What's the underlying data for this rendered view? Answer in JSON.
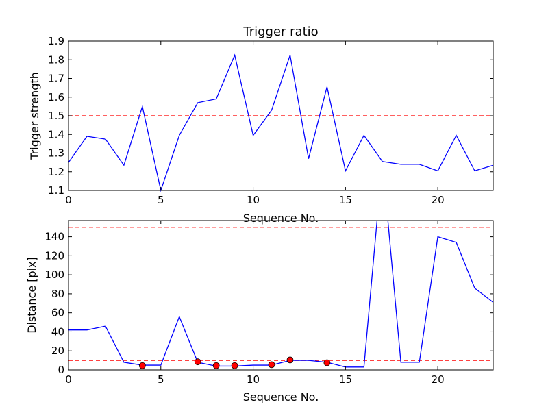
{
  "chart_data": [
    {
      "type": "line",
      "title": "Trigger ratio",
      "xlabel": "Sequence No.",
      "ylabel": "Trigger strength",
      "xlim": [
        0,
        23
      ],
      "ylim": [
        1.1,
        1.9
      ],
      "xticks": [
        0,
        5,
        10,
        15,
        20
      ],
      "xtick_labels": [
        "0",
        "5",
        "10",
        "15",
        "20"
      ],
      "yticks": [
        1.1,
        1.2,
        1.3,
        1.4,
        1.5,
        1.6,
        1.7,
        1.8,
        1.9
      ],
      "ytick_labels": [
        "1.1",
        "1.2",
        "1.3",
        "1.4",
        "1.5",
        "1.6",
        "1.7",
        "1.8",
        "1.9"
      ],
      "grid": false,
      "legend": "none",
      "series": [
        {
          "color": "#0000ff",
          "x": [
            0,
            1,
            2,
            3,
            4,
            5,
            6,
            7,
            8,
            9,
            10,
            11,
            12,
            13,
            14,
            15,
            16,
            17,
            18,
            19,
            20,
            21,
            22,
            23
          ],
          "values": [
            1.25,
            1.39,
            1.375,
            1.235,
            1.55,
            1.1,
            1.395,
            1.57,
            1.59,
            1.825,
            1.395,
            1.53,
            1.825,
            1.27,
            1.655,
            1.205,
            1.395,
            1.255,
            1.24,
            1.24,
            1.205,
            1.395,
            1.205,
            1.235
          ]
        }
      ],
      "reference_lines": [
        {
          "y": 1.5,
          "color": "#ff0000",
          "style": "dashed"
        }
      ]
    },
    {
      "type": "line",
      "title": "",
      "xlabel": "Sequence No.",
      "ylabel": "Distance [pix]",
      "xlim": [
        0,
        23
      ],
      "ylim": [
        0,
        157
      ],
      "xticks": [
        0,
        5,
        10,
        15,
        20
      ],
      "xtick_labels": [
        "0",
        "5",
        "10",
        "15",
        "20"
      ],
      "yticks": [
        0,
        20,
        40,
        60,
        80,
        100,
        120,
        140
      ],
      "ytick_labels": [
        "0",
        "20",
        "40",
        "60",
        "80",
        "100",
        "120",
        "140"
      ],
      "grid": false,
      "legend": "none",
      "series": [
        {
          "color": "#0000ff",
          "x": [
            0,
            1,
            2,
            3,
            4,
            5,
            6,
            7,
            8,
            9,
            10,
            11,
            12,
            13,
            14,
            15,
            16,
            17,
            18,
            19,
            20,
            21,
            22,
            23
          ],
          "values": [
            42,
            42,
            46,
            8,
            5,
            5,
            56,
            8,
            4,
            4,
            5,
            5,
            10,
            10,
            8,
            3,
            3,
            220,
            8,
            8,
            140,
            134,
            86,
            71
          ]
        }
      ],
      "markers": {
        "color": "#ff0000",
        "x": [
          4,
          7,
          8,
          9,
          11,
          12,
          14
        ],
        "values": [
          4.5,
          8.5,
          4.5,
          4.5,
          5.5,
          10.5,
          7.5
        ]
      },
      "reference_lines": [
        {
          "y": 150,
          "color": "#ff0000",
          "style": "dashed"
        },
        {
          "y": 10,
          "color": "#ff0000",
          "style": "dashed"
        }
      ]
    }
  ]
}
